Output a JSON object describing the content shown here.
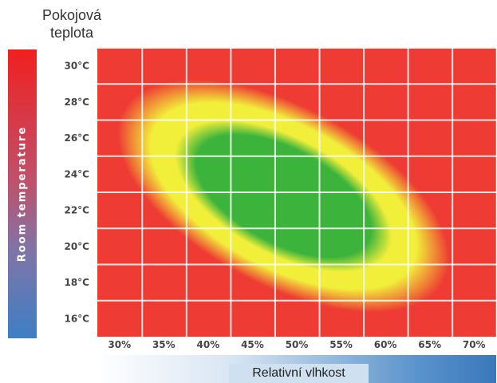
{
  "chart_data": {
    "type": "heatmap",
    "title": "Pokojová teplota",
    "xlabel": "Relativní vlhkost",
    "ylabel": "Room temperature",
    "x_ticks": [
      "30%",
      "35%",
      "40%",
      "45%",
      "50%",
      "55%",
      "60%",
      "65%",
      "70%"
    ],
    "y_ticks": [
      "30°C",
      "28°C",
      "26°C",
      "24°C",
      "22°C",
      "20°C",
      "18°C",
      "16°C"
    ],
    "x_range": [
      27.5,
      72.5
    ],
    "y_range": [
      15,
      31
    ],
    "comfort_zone": {
      "center_humidity": 48.5,
      "center_temperature": 22.8,
      "level": "optimal"
    },
    "colors": {
      "optimal": "#3cb43c",
      "acceptable": "#f2ef3a",
      "poor": "#ee3b33",
      "grid": "#ffffff"
    }
  }
}
